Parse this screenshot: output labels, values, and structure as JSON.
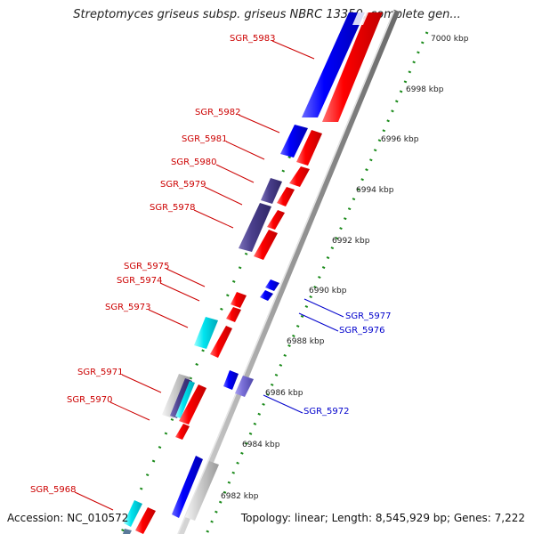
{
  "title": "Streptomyces griseus subsp. griseus NBRC 13350, complete gen...",
  "accession": "Accession: NC_010572",
  "summary": "Topology: linear; Length: 8,545,929 bp; Genes: 7,222",
  "colors": {
    "red_gene": "#ff0000",
    "blue_gene": "#0000ff",
    "navy_gene": "#4a3f8c",
    "cyan_gene": "#00e5f0",
    "grey_gene": "#c8c8c8",
    "scale_dots": "#1a8a1a",
    "label_red": "#cc0000",
    "label_blue": "#0000cc"
  },
  "scale_ticks": [
    "7000 kbp",
    "6998 kbp",
    "6996 kbp",
    "6994 kbp",
    "6992 kbp",
    "6990 kbp",
    "6988 kbp",
    "6986 kbp",
    "6984 kbp",
    "6982 kbp"
  ],
  "gene_labels_left": [
    "SGR_5983",
    "SGR_5982",
    "SGR_5981",
    "SGR_5980",
    "SGR_5979",
    "SGR_5978",
    "SGR_5975",
    "SGR_5974",
    "SGR_5973",
    "SGR_5971",
    "SGR_5970",
    "SGR_5968"
  ],
  "gene_labels_right": [
    "SGR_5977",
    "SGR_5976",
    "SGR_5972"
  ]
}
